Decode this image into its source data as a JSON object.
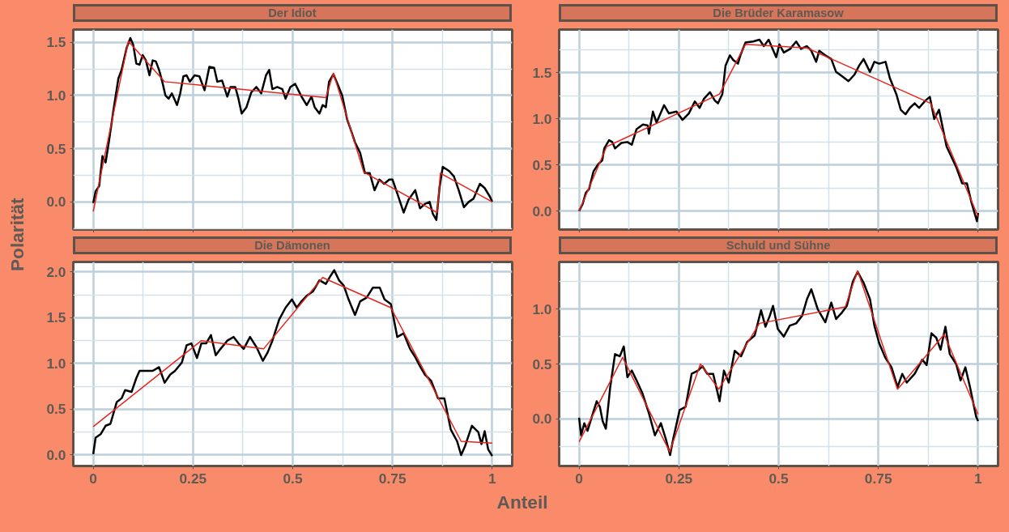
{
  "chart_data": [
    {
      "type": "line",
      "title": "Der Idiot",
      "ylabel": "Polarität",
      "tick_labels": "y",
      "grid": true,
      "marker": "none",
      "line_style": "solid",
      "xlim": [
        -0.05,
        1.05
      ],
      "ylim": [
        -0.26,
        1.62
      ],
      "xticks": [
        0,
        {
          "value": 0.125,
          "label": null
        },
        0.25,
        {
          "value": 0.375,
          "label": null
        },
        0.5,
        {
          "value": 0.625,
          "label": null
        },
        0.75,
        {
          "value": 0.875,
          "label": null
        },
        1
      ],
      "yticks": [
        {
          "value": -0.25,
          "label": null
        },
        {
          "value": 0,
          "label": "0.0"
        },
        {
          "value": 0.25,
          "label": null
        },
        {
          "value": 0.5,
          "label": "0.5"
        },
        {
          "value": 0.75,
          "label": null
        },
        {
          "value": 1,
          "label": "1.0"
        },
        {
          "value": 1.25,
          "label": null
        },
        {
          "value": 1.5,
          "label": "1.5"
        }
      ],
      "series": [
        {
          "color": "#000000",
          "x": [
            0,
            0.006,
            0.015,
            0.023,
            0.031,
            0.039,
            0.051,
            0.063,
            0.071,
            0.084,
            0.093,
            0.1,
            0.108,
            0.116,
            0.124,
            0.132,
            0.141,
            0.149,
            0.157,
            0.165,
            0.173,
            0.181,
            0.189,
            0.197,
            0.21,
            0.218,
            0.226,
            0.234,
            0.242,
            0.254,
            0.266,
            0.279,
            0.291,
            0.303,
            0.311,
            0.323,
            0.336,
            0.344,
            0.356,
            0.364,
            0.372,
            0.384,
            0.396,
            0.409,
            0.421,
            0.433,
            0.441,
            0.449,
            0.461,
            0.474,
            0.482,
            0.494,
            0.506,
            0.514,
            0.522,
            0.535,
            0.547,
            0.555,
            0.567,
            0.575,
            0.583,
            0.591,
            0.602,
            0.612,
            0.624,
            0.636,
            0.648,
            0.656,
            0.669,
            0.681,
            0.693,
            0.705,
            0.717,
            0.729,
            0.742,
            0.75,
            0.762,
            0.778,
            0.79,
            0.807,
            0.819,
            0.831,
            0.843,
            0.851,
            0.86,
            0.868,
            0.876,
            0.892,
            0.904,
            0.916,
            0.929,
            0.941,
            0.953,
            0.969,
            0.981,
            0.994,
            1.0
          ],
          "values": [
            -0.01,
            0.1,
            0.15,
            0.43,
            0.37,
            0.56,
            0.87,
            1.16,
            1.24,
            1.45,
            1.54,
            1.48,
            1.3,
            1.29,
            1.38,
            1.33,
            1.19,
            1.33,
            1.32,
            1.24,
            1.13,
            1.0,
            0.97,
            1.02,
            0.91,
            1.02,
            1.18,
            1.19,
            1.13,
            1.19,
            1.18,
            1.05,
            1.27,
            1.26,
            1.13,
            1.14,
            0.99,
            1.08,
            1.08,
            0.97,
            0.83,
            0.89,
            1.03,
            1.08,
            1.02,
            1.19,
            1.24,
            1.06,
            1.08,
            1.06,
            0.97,
            1.08,
            1.11,
            1.05,
            0.99,
            0.91,
            0.99,
            0.89,
            0.83,
            0.91,
            0.89,
            1.13,
            1.2,
            1.11,
            1.0,
            0.78,
            0.65,
            0.56,
            0.46,
            0.27,
            0.27,
            0.11,
            0.21,
            0.17,
            0.21,
            0.21,
            0.08,
            -0.1,
            0.02,
            0.11,
            -0.06,
            -0.02,
            0.0,
            -0.11,
            -0.17,
            0.14,
            0.33,
            0.29,
            0.24,
            0.11,
            -0.05,
            0.0,
            0.03,
            0.17,
            0.13,
            0.05,
            0.0
          ]
        },
        {
          "color": "#e8231a",
          "x": [
            0,
            0.088,
            0.179,
            0.583,
            0.602,
            0.678,
            0.862,
            0.87,
            1.0
          ],
          "values": [
            -0.09,
            1.51,
            1.13,
            0.98,
            1.21,
            0.28,
            -0.1,
            0.27,
            0.0
          ]
        }
      ]
    },
    {
      "type": "line",
      "title": "Die Brüder Karamasow",
      "tick_labels": "y",
      "grid": true,
      "marker": "none",
      "line_style": "solid",
      "xlim": [
        -0.05,
        1.05
      ],
      "ylim": [
        -0.2,
        1.97
      ],
      "xticks": [
        0,
        {
          "value": 0.125,
          "label": null
        },
        0.25,
        {
          "value": 0.375,
          "label": null
        },
        0.5,
        {
          "value": 0.625,
          "label": null
        },
        0.75,
        {
          "value": 0.875,
          "label": null
        },
        1
      ],
      "yticks": [
        {
          "value": 0,
          "label": "0.0"
        },
        {
          "value": 0.25,
          "label": null
        },
        {
          "value": 0.5,
          "label": "0.5"
        },
        {
          "value": 0.75,
          "label": null
        },
        {
          "value": 1,
          "label": "1.0"
        },
        {
          "value": 1.25,
          "label": null
        },
        {
          "value": 1.5,
          "label": "1.5"
        },
        {
          "value": 1.75,
          "label": null
        }
      ],
      "series": [
        {
          "color": "#000000",
          "x": [
            0,
            0.009,
            0.017,
            0.025,
            0.036,
            0.048,
            0.058,
            0.063,
            0.075,
            0.083,
            0.09,
            0.106,
            0.121,
            0.132,
            0.144,
            0.16,
            0.172,
            0.175,
            0.185,
            0.194,
            0.213,
            0.225,
            0.244,
            0.259,
            0.275,
            0.29,
            0.302,
            0.313,
            0.328,
            0.34,
            0.348,
            0.359,
            0.367,
            0.378,
            0.386,
            0.398,
            0.405,
            0.417,
            0.436,
            0.452,
            0.463,
            0.475,
            0.494,
            0.502,
            0.513,
            0.529,
            0.544,
            0.556,
            0.571,
            0.582,
            0.594,
            0.602,
            0.617,
            0.632,
            0.644,
            0.66,
            0.675,
            0.69,
            0.702,
            0.713,
            0.729,
            0.74,
            0.752,
            0.768,
            0.779,
            0.795,
            0.806,
            0.818,
            0.829,
            0.841,
            0.852,
            0.868,
            0.879,
            0.89,
            0.902,
            0.921,
            0.945,
            0.96,
            0.972,
            0.983,
            0.997,
            1.0
          ],
          "values": [
            0.0,
            0.08,
            0.2,
            0.24,
            0.43,
            0.51,
            0.55,
            0.68,
            0.77,
            0.75,
            0.68,
            0.74,
            0.75,
            0.72,
            0.89,
            0.94,
            0.93,
            0.84,
            1.08,
            0.96,
            1.15,
            1.06,
            1.08,
            0.99,
            1.06,
            1.19,
            1.12,
            1.22,
            1.29,
            1.2,
            1.17,
            1.27,
            1.58,
            1.69,
            1.64,
            1.6,
            1.7,
            1.83,
            1.84,
            1.86,
            1.79,
            1.86,
            1.67,
            1.81,
            1.72,
            1.76,
            1.84,
            1.76,
            1.79,
            1.74,
            1.62,
            1.74,
            1.69,
            1.65,
            1.51,
            1.46,
            1.41,
            1.48,
            1.58,
            1.65,
            1.51,
            1.62,
            1.6,
            1.62,
            1.44,
            1.27,
            1.1,
            1.05,
            1.12,
            1.17,
            1.12,
            1.2,
            1.24,
            1.0,
            1.1,
            0.7,
            0.48,
            0.3,
            0.3,
            0.1,
            -0.11,
            -0.02
          ]
        },
        {
          "color": "#e8231a",
          "x": [
            0,
            0.069,
            0.352,
            0.417,
            0.571,
            0.881,
            1.0
          ],
          "values": [
            0.0,
            0.7,
            1.27,
            1.81,
            1.77,
            1.17,
            -0.06
          ]
        }
      ]
    },
    {
      "type": "line",
      "title": "Die Dämonen",
      "xlabel": "Anteil",
      "grid": true,
      "marker": "none",
      "line_style": "solid",
      "xlim": [
        -0.05,
        1.05
      ],
      "ylim": [
        -0.12,
        2.11
      ],
      "xticks": [
        {
          "value": 0,
          "label": "0"
        },
        {
          "value": 0.125,
          "label": null
        },
        {
          "value": 0.25,
          "label": "0.25"
        },
        {
          "value": 0.375,
          "label": null
        },
        {
          "value": 0.5,
          "label": "0.5"
        },
        {
          "value": 0.625,
          "label": null
        },
        {
          "value": 0.75,
          "label": "0.75"
        },
        {
          "value": 0.875,
          "label": null
        },
        {
          "value": 1,
          "label": "1"
        }
      ],
      "yticks": [
        {
          "value": 0,
          "label": "0.0"
        },
        {
          "value": 0.25,
          "label": null
        },
        {
          "value": 0.5,
          "label": "0.5"
        },
        {
          "value": 0.75,
          "label": null
        },
        {
          "value": 1,
          "label": "1.0"
        },
        {
          "value": 1.25,
          "label": null
        },
        {
          "value": 1.5,
          "label": "1.5"
        },
        {
          "value": 1.75,
          "label": null
        },
        {
          "value": 2,
          "label": "2.0"
        }
      ],
      "series": [
        {
          "color": "#000000",
          "x": [
            0,
            0.006,
            0.019,
            0.031,
            0.043,
            0.059,
            0.071,
            0.08,
            0.096,
            0.108,
            0.116,
            0.132,
            0.149,
            0.165,
            0.179,
            0.193,
            0.205,
            0.222,
            0.234,
            0.246,
            0.26,
            0.271,
            0.283,
            0.295,
            0.307,
            0.319,
            0.336,
            0.352,
            0.364,
            0.377,
            0.393,
            0.409,
            0.425,
            0.437,
            0.449,
            0.466,
            0.482,
            0.498,
            0.51,
            0.522,
            0.535,
            0.551,
            0.567,
            0.583,
            0.595,
            0.604,
            0.616,
            0.628,
            0.64,
            0.656,
            0.669,
            0.685,
            0.701,
            0.718,
            0.73,
            0.746,
            0.762,
            0.778,
            0.794,
            0.807,
            0.819,
            0.831,
            0.847,
            0.864,
            0.88,
            0.896,
            0.912,
            0.922,
            0.932,
            0.949,
            0.965,
            0.973,
            0.981,
            0.99,
            1.0
          ],
          "values": [
            0.01,
            0.19,
            0.23,
            0.32,
            0.34,
            0.58,
            0.62,
            0.71,
            0.69,
            0.84,
            0.92,
            0.92,
            0.92,
            0.96,
            0.79,
            0.88,
            0.92,
            1.01,
            1.2,
            1.22,
            1.06,
            1.22,
            1.22,
            1.31,
            1.09,
            1.16,
            1.25,
            1.29,
            1.22,
            1.16,
            1.29,
            1.18,
            1.03,
            1.12,
            1.25,
            1.48,
            1.61,
            1.7,
            1.61,
            1.68,
            1.74,
            1.79,
            1.91,
            1.87,
            1.96,
            2.02,
            1.91,
            1.85,
            1.7,
            1.53,
            1.68,
            1.72,
            1.83,
            1.83,
            1.7,
            1.65,
            1.29,
            1.33,
            1.16,
            1.07,
            0.97,
            0.88,
            0.81,
            0.62,
            0.62,
            0.28,
            0.15,
            0.0,
            0.1,
            0.32,
            0.25,
            0.12,
            0.26,
            0.06,
            -0.01
          ]
        },
        {
          "color": "#e8231a",
          "x": [
            0,
            0.271,
            0.427,
            0.575,
            0.746,
            0.922,
            1.0
          ],
          "values": [
            0.31,
            1.25,
            1.16,
            1.94,
            1.61,
            0.15,
            0.13
          ]
        }
      ]
    },
    {
      "type": "line",
      "title": "Schuld und Sühne",
      "grid": true,
      "marker": "none",
      "line_style": "solid",
      "xlim": [
        -0.05,
        1.05
      ],
      "ylim": [
        -0.43,
        1.43
      ],
      "xticks": [
        {
          "value": 0,
          "label": "0"
        },
        {
          "value": 0.125,
          "label": null
        },
        {
          "value": 0.25,
          "label": "0.25"
        },
        {
          "value": 0.375,
          "label": null
        },
        {
          "value": 0.5,
          "label": "0.5"
        },
        {
          "value": 0.625,
          "label": null
        },
        {
          "value": 0.75,
          "label": "0.75"
        },
        {
          "value": 0.875,
          "label": null
        },
        {
          "value": 1,
          "label": "1"
        }
      ],
      "yticks": [
        {
          "value": -0.25,
          "label": null
        },
        {
          "value": 0,
          "label": "0.0"
        },
        {
          "value": 0.25,
          "label": null
        },
        {
          "value": 0.5,
          "label": "0.5"
        },
        {
          "value": 0.75,
          "label": null
        },
        {
          "value": 1,
          "label": "1.0"
        },
        {
          "value": 1.25,
          "label": null
        }
      ],
      "series": [
        {
          "color": "#000000",
          "x": [
            0,
            0.005,
            0.013,
            0.021,
            0.032,
            0.044,
            0.052,
            0.059,
            0.067,
            0.078,
            0.09,
            0.102,
            0.112,
            0.121,
            0.132,
            0.144,
            0.159,
            0.175,
            0.19,
            0.205,
            0.217,
            0.228,
            0.236,
            0.252,
            0.267,
            0.282,
            0.298,
            0.309,
            0.321,
            0.336,
            0.352,
            0.363,
            0.375,
            0.39,
            0.406,
            0.421,
            0.44,
            0.456,
            0.467,
            0.478,
            0.486,
            0.498,
            0.513,
            0.528,
            0.544,
            0.559,
            0.571,
            0.582,
            0.598,
            0.617,
            0.632,
            0.644,
            0.659,
            0.671,
            0.686,
            0.698,
            0.713,
            0.729,
            0.74,
            0.752,
            0.767,
            0.783,
            0.798,
            0.81,
            0.821,
            0.841,
            0.86,
            0.871,
            0.883,
            0.895,
            0.906,
            0.918,
            0.929,
            0.945,
            0.956,
            0.968,
            0.979,
            0.995,
            1.0
          ],
          "values": [
            0.01,
            -0.15,
            -0.04,
            -0.11,
            0.02,
            0.16,
            0.11,
            -0.02,
            -0.09,
            0.29,
            0.59,
            0.57,
            0.66,
            0.38,
            0.44,
            0.35,
            0.23,
            0.05,
            -0.15,
            -0.04,
            -0.18,
            -0.33,
            -0.18,
            0.08,
            0.11,
            0.41,
            0.44,
            0.48,
            0.41,
            0.41,
            0.16,
            0.44,
            0.33,
            0.62,
            0.57,
            0.7,
            0.76,
            0.99,
            0.84,
            0.94,
            1.03,
            0.82,
            0.75,
            0.85,
            0.87,
            0.94,
            1.09,
            1.18,
            1.0,
            0.88,
            1.06,
            0.91,
            0.97,
            1.03,
            1.25,
            1.34,
            1.24,
            1.09,
            0.85,
            0.69,
            0.56,
            0.47,
            0.29,
            0.41,
            0.33,
            0.41,
            0.54,
            0.49,
            0.78,
            0.74,
            0.63,
            0.84,
            0.59,
            0.5,
            0.35,
            0.47,
            0.3,
            0.02,
            -0.02
          ]
        },
        {
          "color": "#e8231a",
          "x": [
            0,
            0.109,
            0.227,
            0.304,
            0.35,
            0.452,
            0.667,
            0.698,
            0.798,
            0.915,
            1.0
          ],
          "values": [
            -0.21,
            0.56,
            -0.3,
            0.5,
            0.27,
            0.87,
            1.02,
            1.35,
            0.27,
            0.77,
            0.04
          ]
        }
      ]
    }
  ]
}
